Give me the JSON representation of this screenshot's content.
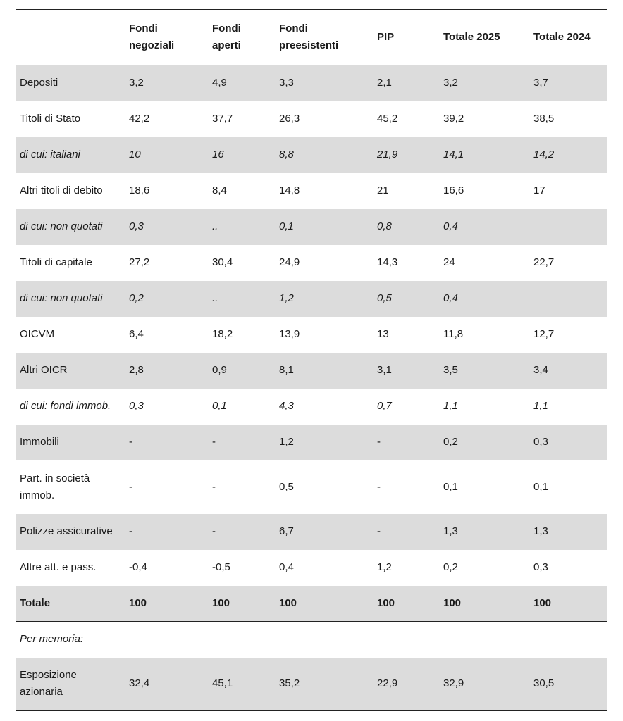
{
  "header": [
    "",
    "Fondi negoziali",
    "Fondi aperti",
    "Fondi preesistenti",
    "PIP",
    "Totale 2025",
    "Totale 2024"
  ],
  "rows": [
    {
      "cells": [
        "Depositi",
        "3,2",
        "4,9",
        "3,3",
        "2,1",
        "3,2",
        "3,7"
      ],
      "shade": true
    },
    {
      "cells": [
        "Titoli di Stato",
        "42,2",
        "37,7",
        "26,3",
        "45,2",
        "39,2",
        "38,5"
      ]
    },
    {
      "cells": [
        "di cui: italiani",
        "10",
        "16",
        "8,8",
        "21,9",
        "14,1",
        "14,2"
      ],
      "shade": true,
      "italic": true
    },
    {
      "cells": [
        "Altri titoli di debito",
        "18,6",
        "8,4",
        "14,8",
        "21",
        "16,6",
        "17"
      ]
    },
    {
      "cells": [
        "di cui: non quotati",
        "0,3",
        "..",
        "0,1",
        "0,8",
        "0,4",
        ""
      ],
      "shade": true,
      "italic": true
    },
    {
      "cells": [
        "Titoli di capitale",
        "27,2",
        "30,4",
        "24,9",
        "14,3",
        "24",
        "22,7"
      ]
    },
    {
      "cells": [
        "di cui: non quotati",
        "0,2",
        "..",
        "1,2",
        "0,5",
        "0,4",
        ""
      ],
      "shade": true,
      "italic": true
    },
    {
      "cells": [
        "OICVM",
        "6,4",
        "18,2",
        "13,9",
        "13",
        "11,8",
        "12,7"
      ]
    },
    {
      "cells": [
        "Altri OICR",
        "2,8",
        "0,9",
        "8,1",
        "3,1",
        "3,5",
        "3,4"
      ],
      "shade": true
    },
    {
      "cells": [
        "di cui: fondi immob.",
        "0,3",
        "0,1",
        "4,3",
        "0,7",
        "1,1",
        "1,1"
      ],
      "italic": true
    },
    {
      "cells": [
        "Immobili",
        "-",
        "-",
        "1,2",
        "-",
        "0,2",
        "0,3"
      ],
      "shade": true
    },
    {
      "cells": [
        "Part. in società immob.",
        "-",
        "-",
        "0,5",
        "-",
        "0,1",
        "0,1"
      ],
      "tall": true
    },
    {
      "cells": [
        "Polizze assicurative",
        "-",
        "-",
        "6,7",
        "-",
        "1,3",
        "1,3"
      ],
      "shade": true
    },
    {
      "cells": [
        "Altre att. e pass.",
        "-0,4",
        "-0,5",
        "0,4",
        "1,2",
        "0,2",
        "0,3"
      ]
    },
    {
      "cells": [
        "Totale",
        "100",
        "100",
        "100",
        "100",
        "100",
        "100"
      ],
      "shade": true,
      "bold": true,
      "total": true
    },
    {
      "cells": [
        "Per memoria:",
        "",
        "",
        "",
        "",
        "",
        ""
      ],
      "italic": true
    },
    {
      "cells": [
        "Esposizione azionaria",
        "32,4",
        "45,1",
        "35,2",
        "22,9",
        "32,9",
        "30,5"
      ],
      "shade": true,
      "tall": true,
      "last": true
    }
  ]
}
